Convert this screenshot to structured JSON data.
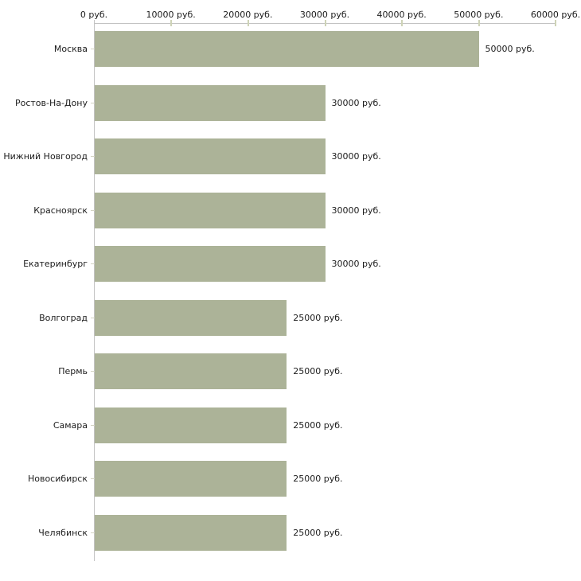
{
  "chart_data": {
    "type": "bar",
    "orientation": "horizontal",
    "title": "",
    "xlabel": "",
    "ylabel": "",
    "legend": "none",
    "grid": "off",
    "categories": [
      "Москва",
      "Ростов-На-Дону",
      "Нижний Новгород",
      "Красноярск",
      "Екатеринбург",
      "Волгоград",
      "Пермь",
      "Самара",
      "Новосибирск",
      "Челябинск"
    ],
    "values": [
      50000,
      30000,
      30000,
      30000,
      30000,
      25000,
      25000,
      25000,
      25000,
      25000
    ],
    "value_labels": [
      "50000 руб.",
      "30000 руб.",
      "30000 руб.",
      "30000 руб.",
      "30000 руб.",
      "25000 руб.",
      "25000 руб.",
      "25000 руб.",
      "25000 руб.",
      "25000 руб."
    ],
    "x_axis": {
      "position": "top",
      "min": 0,
      "max": 60000,
      "ticks": [
        0,
        10000,
        20000,
        30000,
        40000,
        50000,
        60000
      ],
      "tick_labels": [
        "0 руб.",
        "10000 руб.",
        "20000 руб.",
        "30000 руб.",
        "40000 руб.",
        "50000 руб.",
        "60000 руб."
      ]
    },
    "colors": {
      "bar": "#acb398",
      "axis_line": "#c3c3c3",
      "axis_tick": "#ced3b7",
      "category_tick": "#d4d4c4",
      "text": "#1c1c1c",
      "background": "#ffffff"
    }
  }
}
